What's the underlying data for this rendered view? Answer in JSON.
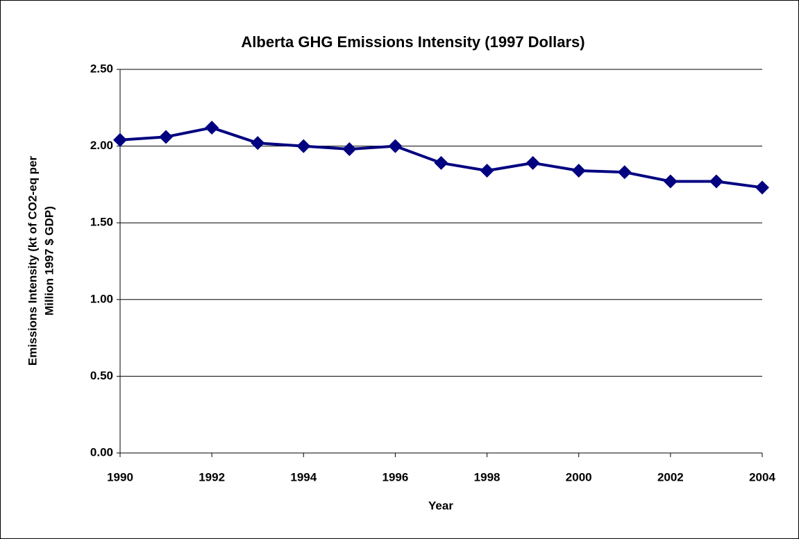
{
  "chart_data": {
    "type": "line",
    "title": "Alberta GHG Emissions Intensity (1997 Dollars)",
    "xlabel": "Year",
    "ylabel": [
      "Emissions Intensity (kt of CO2-eq per",
      "Million 1997 $ GDP)"
    ],
    "x": [
      1990,
      1991,
      1992,
      1993,
      1994,
      1995,
      1996,
      1997,
      1998,
      1999,
      2000,
      2001,
      2002,
      2003,
      2004
    ],
    "series": [
      {
        "color": "#000080",
        "values": [
          2.04,
          2.06,
          2.12,
          2.02,
          2.0,
          1.98,
          2.0,
          1.89,
          1.84,
          1.89,
          1.84,
          1.83,
          1.77,
          1.77,
          1.73
        ]
      }
    ],
    "xlim": [
      1990,
      2004
    ],
    "xticks": [
      1990,
      1992,
      1994,
      1996,
      1998,
      2000,
      2002,
      2004
    ],
    "ylim": [
      0,
      2.5
    ],
    "yticks": [
      {
        "value": 0,
        "label": "0.00"
      },
      {
        "value": 0.5,
        "label": "0.50"
      },
      {
        "value": 1,
        "label": "1.00"
      },
      {
        "value": 1.5,
        "label": "1.50"
      },
      {
        "value": 2,
        "label": "2.00"
      },
      {
        "value": 2.5,
        "label": "2.50"
      }
    ],
    "grid": true
  }
}
